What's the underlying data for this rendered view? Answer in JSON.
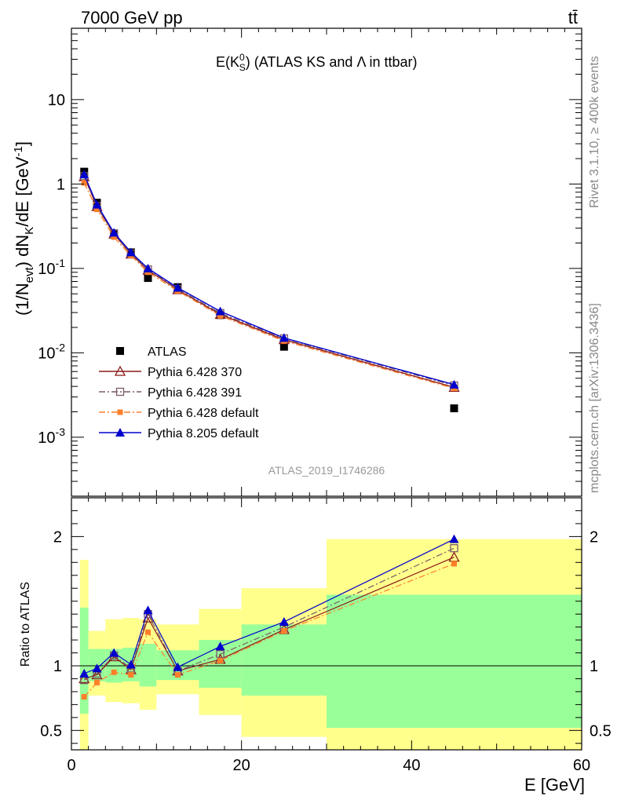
{
  "header": {
    "left": "7000 GeV pp",
    "right": "tt̄"
  },
  "side_labels": {
    "rivet": "Rivet 3.1.10, ≥ 400k events",
    "mcplots": "mcplots.cern.ch [arXiv:1306.3436]"
  },
  "chart_data": [
    {
      "type": "line",
      "title": "E(K⁰S) (ATLAS KS and Λ in ttbar)",
      "analysis_label": "ATLAS_2019_I1746286",
      "ylabel": "(1/Nevt) dNK/dE [GeV⁻¹]",
      "ylabel_parts": {
        "p1": "(1/N",
        "p2": "evt",
        "p3": ") dN",
        "p4": "K",
        "p5": "/dE [GeV",
        "p6": "-1",
        "p7": "]"
      },
      "title_parts": {
        "p1": "E(K",
        "p2": "0",
        "p3": "S",
        "p4": ") (ATLAS KS and Λ in ttbar)"
      },
      "yscale": "log",
      "xlim": [
        0,
        60
      ],
      "ylim": [
        0.0002,
        70
      ],
      "y_tick_labels": [
        {
          "base": "10",
          "exp": "-3",
          "v": 0.001
        },
        {
          "base": "10",
          "exp": "-2",
          "v": 0.01
        },
        {
          "base": "10",
          "exp": "-1",
          "v": 0.1
        },
        {
          "base": "1",
          "exp": "",
          "v": 1
        },
        {
          "base": "10",
          "exp": "",
          "v": 10
        }
      ],
      "legend_position": "lower-left",
      "series": [
        {
          "name": "ATLAS",
          "color": "#000000",
          "marker": "square-filled",
          "line": "none",
          "x": [
            1.5,
            3,
            5,
            7,
            9,
            12.5,
            17.5,
            25,
            45
          ],
          "y": [
            1.4,
            0.6,
            0.26,
            0.155,
            0.077,
            0.06,
            0.028,
            0.0118,
            0.0022
          ]
        },
        {
          "name": "Pythia 6.428 370",
          "color": "#8b1a1a",
          "marker": "triangle-open",
          "line": "solid",
          "x": [
            1.5,
            3,
            5,
            7,
            9,
            12.5,
            17.5,
            25,
            45
          ],
          "y": [
            1.22,
            0.54,
            0.255,
            0.148,
            0.095,
            0.056,
            0.0285,
            0.0143,
            0.0039
          ]
        },
        {
          "name": "Pythia 6.428 391",
          "color": "#7a5a6a",
          "marker": "square-open",
          "line": "dashdot",
          "x": [
            1.5,
            3,
            5,
            7,
            9,
            12.5,
            17.5,
            25,
            45
          ],
          "y": [
            1.24,
            0.55,
            0.258,
            0.15,
            0.097,
            0.057,
            0.0295,
            0.0148,
            0.0041
          ]
        },
        {
          "name": "Pythia 6.428 default",
          "color": "#ff7f2a",
          "marker": "square-filled-small",
          "line": "dashdot",
          "x": [
            1.5,
            3,
            5,
            7,
            9,
            12.5,
            17.5,
            25,
            45
          ],
          "y": [
            1.03,
            0.5,
            0.235,
            0.142,
            0.09,
            0.054,
            0.0275,
            0.0138,
            0.0038
          ]
        },
        {
          "name": "Pythia 8.205 default",
          "color": "#0000cc",
          "marker": "triangle-filled",
          "line": "solid",
          "x": [
            1.5,
            3,
            5,
            7,
            9,
            12.5,
            17.5,
            25,
            45
          ],
          "y": [
            1.3,
            0.57,
            0.265,
            0.155,
            0.1,
            0.059,
            0.031,
            0.015,
            0.0042
          ]
        }
      ]
    },
    {
      "type": "line",
      "ylabel": "Ratio to ATLAS",
      "xlabel": "E [GeV]",
      "xlim": [
        0,
        60
      ],
      "ylim": [
        0.35,
        2.3
      ],
      "x_ticks": [
        0,
        20,
        40,
        60
      ],
      "y_ticks": [
        0.5,
        1,
        2
      ],
      "reference_line": 1,
      "bins": [
        [
          1,
          2
        ],
        [
          2,
          4
        ],
        [
          4,
          6
        ],
        [
          6,
          8
        ],
        [
          8,
          10
        ],
        [
          10,
          15
        ],
        [
          15,
          20
        ],
        [
          20,
          30
        ],
        [
          30,
          60
        ]
      ],
      "band_inner": [
        [
          0.63,
          1.45
        ],
        [
          0.88,
          1.13
        ],
        [
          0.87,
          1.13
        ],
        [
          0.88,
          1.14
        ],
        [
          0.84,
          1.17
        ],
        [
          0.89,
          1.12
        ],
        [
          0.83,
          1.2
        ],
        [
          0.77,
          1.32
        ],
        [
          0.52,
          1.55
        ]
      ],
      "band_outer": [
        [
          0.32,
          1.82
        ],
        [
          0.77,
          1.27
        ],
        [
          0.72,
          1.36
        ],
        [
          0.71,
          1.37
        ],
        [
          0.66,
          1.36
        ],
        [
          0.78,
          1.32
        ],
        [
          0.62,
          1.44
        ],
        [
          0.45,
          1.6
        ],
        [
          0.34,
          1.98
        ]
      ],
      "series": [
        {
          "name": "Pythia 6.428 370",
          "color": "#8b1a1a",
          "marker": "triangle-open",
          "line": "solid",
          "x": [
            1.5,
            3,
            5,
            7,
            9,
            12.5,
            17.5,
            25,
            45
          ],
          "y": [
            0.9,
            0.93,
            1.07,
            0.97,
            1.37,
            0.96,
            1.05,
            1.28,
            1.84
          ]
        },
        {
          "name": "Pythia 6.428 391",
          "color": "#7a5a6a",
          "marker": "square-open",
          "line": "dashdot",
          "x": [
            1.5,
            3,
            5,
            7,
            9,
            12.5,
            17.5,
            25,
            45
          ],
          "y": [
            0.89,
            0.94,
            1.08,
            0.98,
            1.4,
            0.96,
            1.09,
            1.3,
            1.91
          ]
        },
        {
          "name": "Pythia 6.428 default",
          "color": "#ff7f2a",
          "marker": "square-filled-small",
          "line": "dashdot",
          "x": [
            1.5,
            3,
            5,
            7,
            9,
            12.5,
            17.5,
            25,
            45
          ],
          "y": [
            0.76,
            0.87,
            0.95,
            0.93,
            1.26,
            0.93,
            1.04,
            1.27,
            1.79
          ]
        },
        {
          "name": "Pythia 8.205 default",
          "color": "#0000cc",
          "marker": "triangle-filled",
          "line": "solid",
          "x": [
            1.5,
            3,
            5,
            7,
            9,
            12.5,
            17.5,
            25,
            45
          ],
          "y": [
            0.94,
            0.98,
            1.1,
            1.01,
            1.43,
            0.99,
            1.15,
            1.34,
            1.98
          ]
        }
      ]
    }
  ]
}
